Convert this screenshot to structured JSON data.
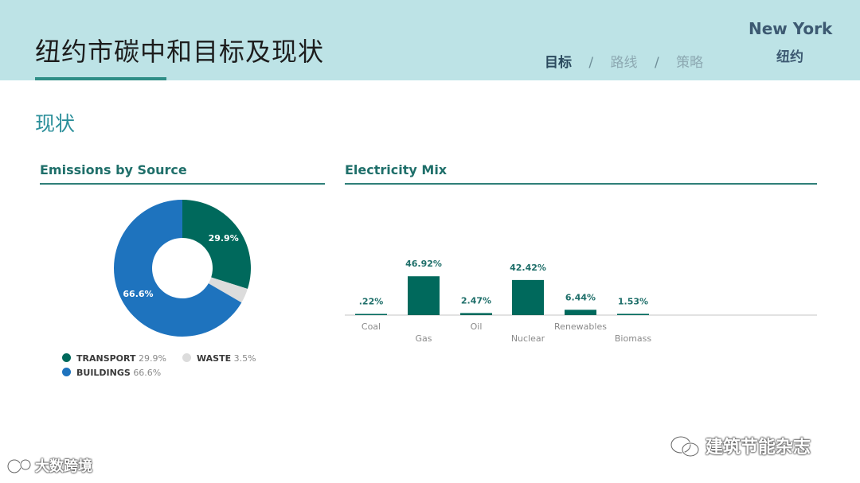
{
  "header": {
    "title": "纽约市碳中和目标及现状",
    "nav": [
      {
        "label": "目标",
        "active": true
      },
      {
        "label": "路线",
        "active": false
      },
      {
        "label": "策略",
        "active": false
      }
    ],
    "nav_separator": "/",
    "city_en": "New York",
    "city_cn": "纽约"
  },
  "section_title": "现状",
  "colors": {
    "header_bg": "#bde3e6",
    "accent_teal": "#00695c",
    "accent_blue": "#1e73be",
    "waste_gray": "#dcdcdc"
  },
  "chart_data": [
    {
      "type": "pie",
      "title": "Emissions by Source",
      "slices": [
        {
          "name": "TRANSPORT",
          "value": 29.9,
          "label": "29.9%",
          "color": "#00695c"
        },
        {
          "name": "WASTE",
          "value": 3.5,
          "label": "3.5%",
          "color": "#dcdcdc"
        },
        {
          "name": "BUILDINGS",
          "value": 66.6,
          "label": "66.6%",
          "color": "#1e73be"
        }
      ],
      "donut": true,
      "legend": [
        {
          "name": "TRANSPORT",
          "pct": "29.9%",
          "color": "#00695c"
        },
        {
          "name": "WASTE",
          "pct": "3.5%",
          "color": "#dcdcdc"
        },
        {
          "name": "BUILDINGS",
          "pct": "66.6%",
          "color": "#1e73be"
        }
      ]
    },
    {
      "type": "bar",
      "title": "Electricity Mix",
      "categories": [
        "Coal",
        "Gas",
        "Oil",
        "Nuclear",
        "Renewables",
        "Biomass"
      ],
      "values": [
        0.22,
        46.92,
        2.47,
        42.42,
        6.44,
        1.53
      ],
      "value_labels": [
        ".22%",
        "46.92%",
        "2.47%",
        "42.42%",
        "6.44%",
        "1.53%"
      ],
      "ylim": [
        0,
        50
      ],
      "color": "#00695c"
    }
  ],
  "watermarks": {
    "left": "大数跨境",
    "right": "建筑节能杂志"
  }
}
